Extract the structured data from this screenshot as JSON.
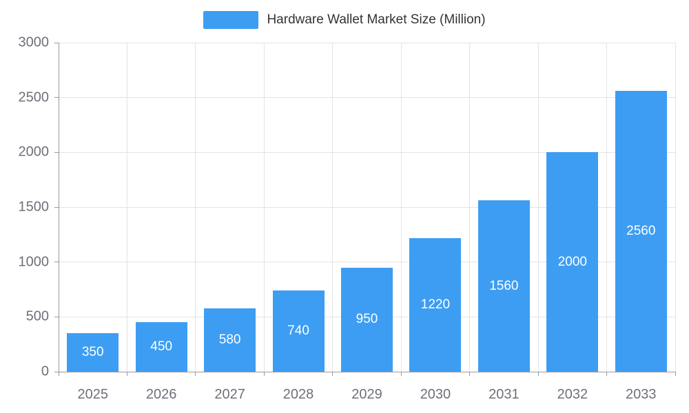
{
  "chart_data": {
    "type": "bar",
    "title": "Hardware Wallet Market Size (Million)",
    "categories": [
      "2025",
      "2026",
      "2027",
      "2028",
      "2029",
      "2030",
      "2031",
      "2032",
      "2033"
    ],
    "values": [
      350,
      450,
      580,
      740,
      950,
      1220,
      1560,
      2000,
      2560
    ],
    "xlabel": "",
    "ylabel": "",
    "ylim": [
      0,
      3000
    ],
    "ytick_interval": 500,
    "y_tick_labels": [
      "0",
      "500",
      "1000",
      "1500",
      "2000",
      "2500",
      "3000"
    ],
    "grid": true,
    "legend_position": "top-center",
    "value_labels": "inside-center",
    "colors": {
      "bar": "#3d9df3",
      "value_label": "#ffffff",
      "gridline": "#e3e3e3",
      "axis": "#999999",
      "tick_label": "#6e7079",
      "legend_text": "#333333",
      "background": "#ffffff"
    }
  }
}
